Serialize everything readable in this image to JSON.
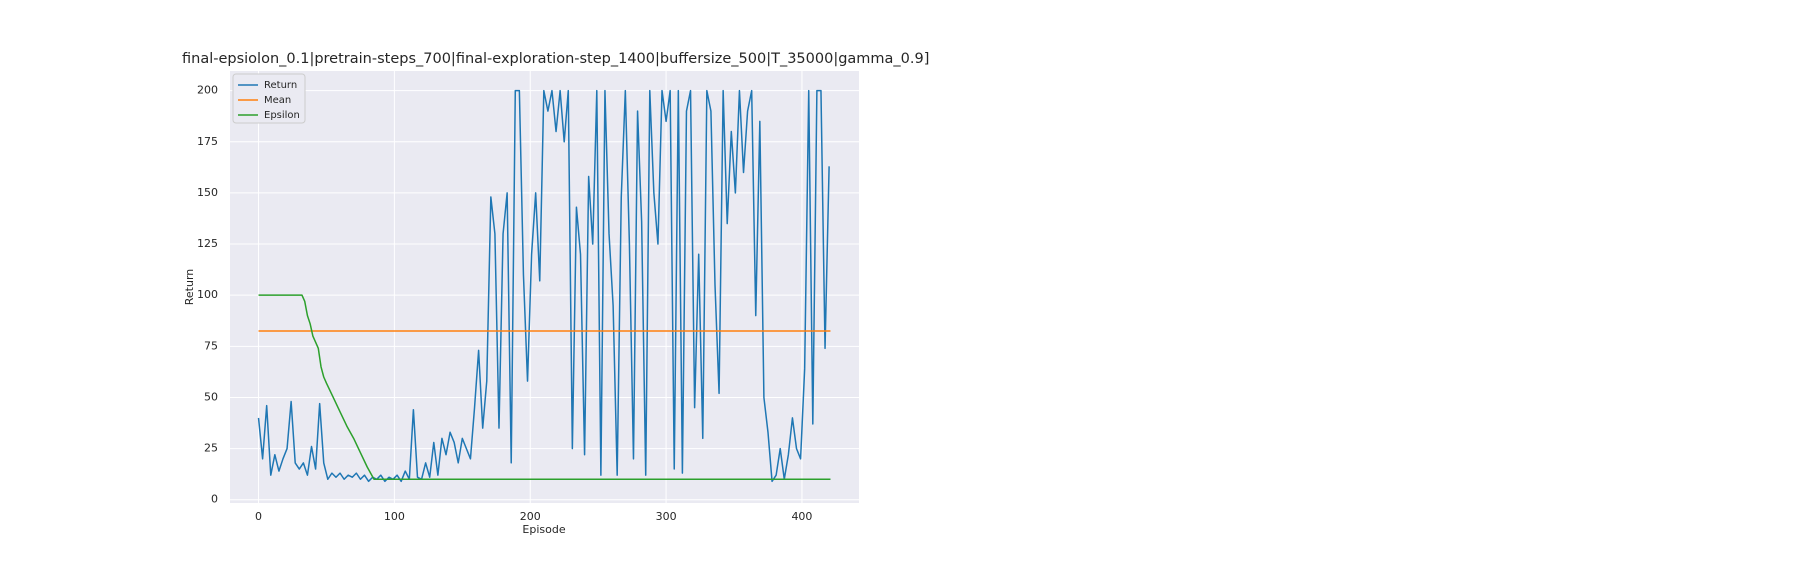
{
  "chart_data": {
    "type": "line",
    "title": "final-epsiolon_0.1|pretrain-steps_700|final-exploration-step_1400|buffersize_500|T_35000|gamma_0.9]",
    "x_label": "Episode",
    "y_label": "Return",
    "xlim": [
      -21,
      442
    ],
    "ylim": [
      -1.6,
      209.6
    ],
    "xticks": [
      0,
      100,
      200,
      300,
      400
    ],
    "yticks": [
      0,
      25,
      50,
      75,
      100,
      125,
      150,
      175,
      200
    ],
    "grid": true,
    "legend": "upper-left",
    "series": [
      {
        "name": "Return",
        "color": "#1f77b4",
        "x": [
          0,
          3,
          6,
          9,
          12,
          15,
          18,
          21,
          24,
          27,
          30,
          33,
          36,
          39,
          42,
          45,
          48,
          51,
          54,
          57,
          60,
          63,
          66,
          69,
          72,
          75,
          78,
          81,
          84,
          87,
          90,
          93,
          96,
          99,
          102,
          105,
          108,
          111,
          114,
          117,
          120,
          123,
          126,
          129,
          132,
          135,
          138,
          141,
          144,
          147,
          150,
          153,
          156,
          159,
          162,
          165,
          168,
          171,
          174,
          177,
          180,
          183,
          186,
          189,
          192,
          195,
          198,
          201,
          204,
          207,
          210,
          213,
          216,
          219,
          222,
          225,
          228,
          231,
          234,
          237,
          240,
          243,
          246,
          249,
          252,
          255,
          258,
          261,
          264,
          267,
          270,
          273,
          276,
          279,
          282,
          285,
          288,
          291,
          294,
          297,
          300,
          303,
          306,
          309,
          312,
          315,
          318,
          321,
          324,
          327,
          330,
          333,
          336,
          339,
          342,
          345,
          348,
          351,
          354,
          357,
          360,
          363,
          366,
          369,
          372,
          375,
          378,
          381,
          384,
          387,
          390,
          393,
          396,
          399,
          402,
          405,
          408,
          411,
          414,
          417,
          420
        ],
        "values": [
          40,
          20,
          46,
          12,
          22,
          14,
          20,
          25,
          48,
          18,
          15,
          18,
          12,
          26,
          15,
          47,
          18,
          10,
          13,
          11,
          13,
          10,
          12,
          11,
          13,
          10,
          12,
          9,
          11,
          10,
          12,
          9,
          11,
          10,
          12,
          9,
          14,
          10,
          44,
          11,
          10,
          18,
          11,
          28,
          12,
          30,
          22,
          33,
          28,
          18,
          30,
          25,
          20,
          45,
          73,
          35,
          58,
          148,
          130,
          35,
          130,
          150,
          18,
          200,
          200,
          110,
          58,
          120,
          150,
          107,
          200,
          190,
          200,
          180,
          200,
          175,
          200,
          25,
          143,
          120,
          22,
          158,
          125,
          200,
          12,
          200,
          130,
          95,
          12,
          148,
          200,
          125,
          20,
          190,
          136,
          12,
          200,
          150,
          125,
          200,
          185,
          200,
          15,
          200,
          13,
          190,
          200,
          45,
          120,
          30,
          200,
          190,
          105,
          52,
          200,
          135,
          180,
          150,
          200,
          160,
          190,
          200,
          90,
          185,
          50,
          33,
          9,
          12,
          25,
          10,
          22,
          40,
          25,
          20,
          64,
          200,
          37,
          200,
          200,
          74,
          163
        ]
      },
      {
        "name": "Mean",
        "color": "#ff7f0e",
        "x": [
          0,
          421
        ],
        "values": [
          82.5,
          82.5
        ]
      },
      {
        "name": "Epsilon",
        "color": "#2ca02c",
        "x": [
          0,
          32,
          34,
          36,
          38,
          40,
          42,
          44,
          46,
          48,
          50,
          55,
          60,
          65,
          70,
          75,
          80,
          85,
          421
        ],
        "values": [
          100,
          100,
          97,
          90,
          86,
          80,
          77,
          74,
          65,
          60,
          57,
          50,
          43,
          36,
          30,
          23,
          16,
          10,
          10
        ]
      }
    ]
  }
}
